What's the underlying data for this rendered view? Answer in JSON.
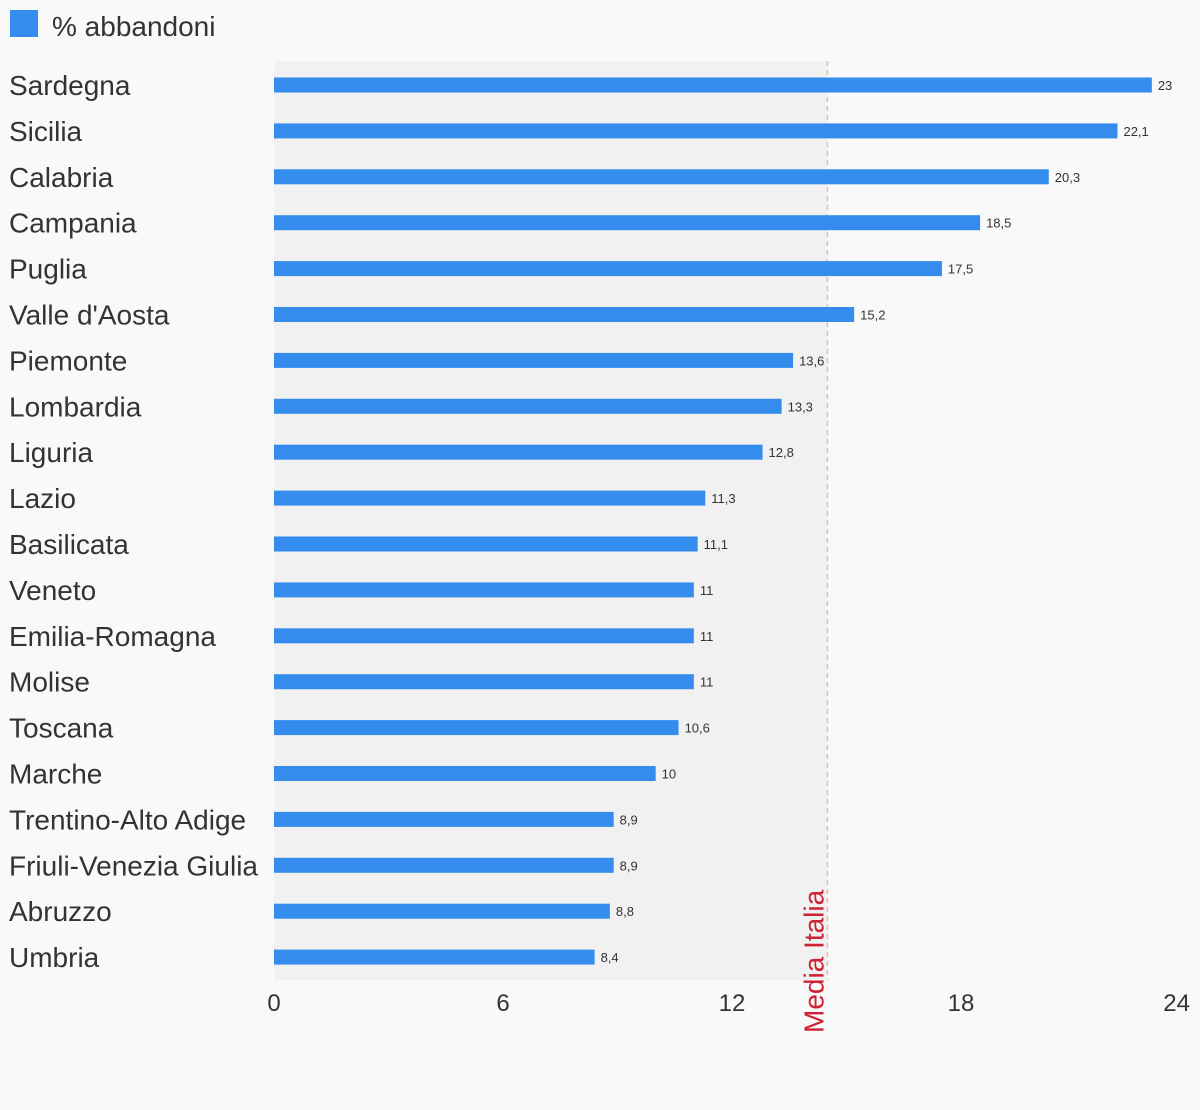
{
  "chart_data": {
    "type": "bar",
    "orientation": "horizontal",
    "categories": [
      "Sardegna",
      "Sicilia",
      "Calabria",
      "Campania",
      "Puglia",
      "Valle d'Aosta",
      "Piemonte",
      "Lombardia",
      "Liguria",
      "Lazio",
      "Basilicata",
      "Veneto",
      "Emilia-Romagna",
      "Molise",
      "Toscana",
      "Marche",
      "Trentino-Alto Adige",
      "Friuli-Venezia Giulia",
      "Abruzzo",
      "Umbria"
    ],
    "series": [
      {
        "name": "% abbandoni",
        "color": "#348ced",
        "values": [
          23,
          22.1,
          20.3,
          18.5,
          17.5,
          15.2,
          13.6,
          13.3,
          12.8,
          11.3,
          11.1,
          11,
          11,
          11,
          10.6,
          10,
          8.9,
          8.9,
          8.8,
          8.4
        ],
        "value_labels": [
          "23",
          "22,1",
          "20,3",
          "18,5",
          "17,5",
          "15,2",
          "13,6",
          "13,3",
          "12,8",
          "11,3",
          "11,1",
          "11",
          "11",
          "11",
          "10,6",
          "10",
          "8,9",
          "8,9",
          "8,8",
          "8,4"
        ]
      }
    ],
    "xlim": [
      0,
      24
    ],
    "x_ticks": [
      0,
      6,
      12,
      18,
      24
    ],
    "x_tick_labels": [
      "0",
      "6",
      "12",
      "18",
      "24"
    ],
    "reference_line": {
      "label": "Media Italia",
      "value": 14.5,
      "color": "#cc2233"
    },
    "shaded_band": [
      0,
      14.5
    ],
    "legend_position": "top-left",
    "grid": false
  }
}
